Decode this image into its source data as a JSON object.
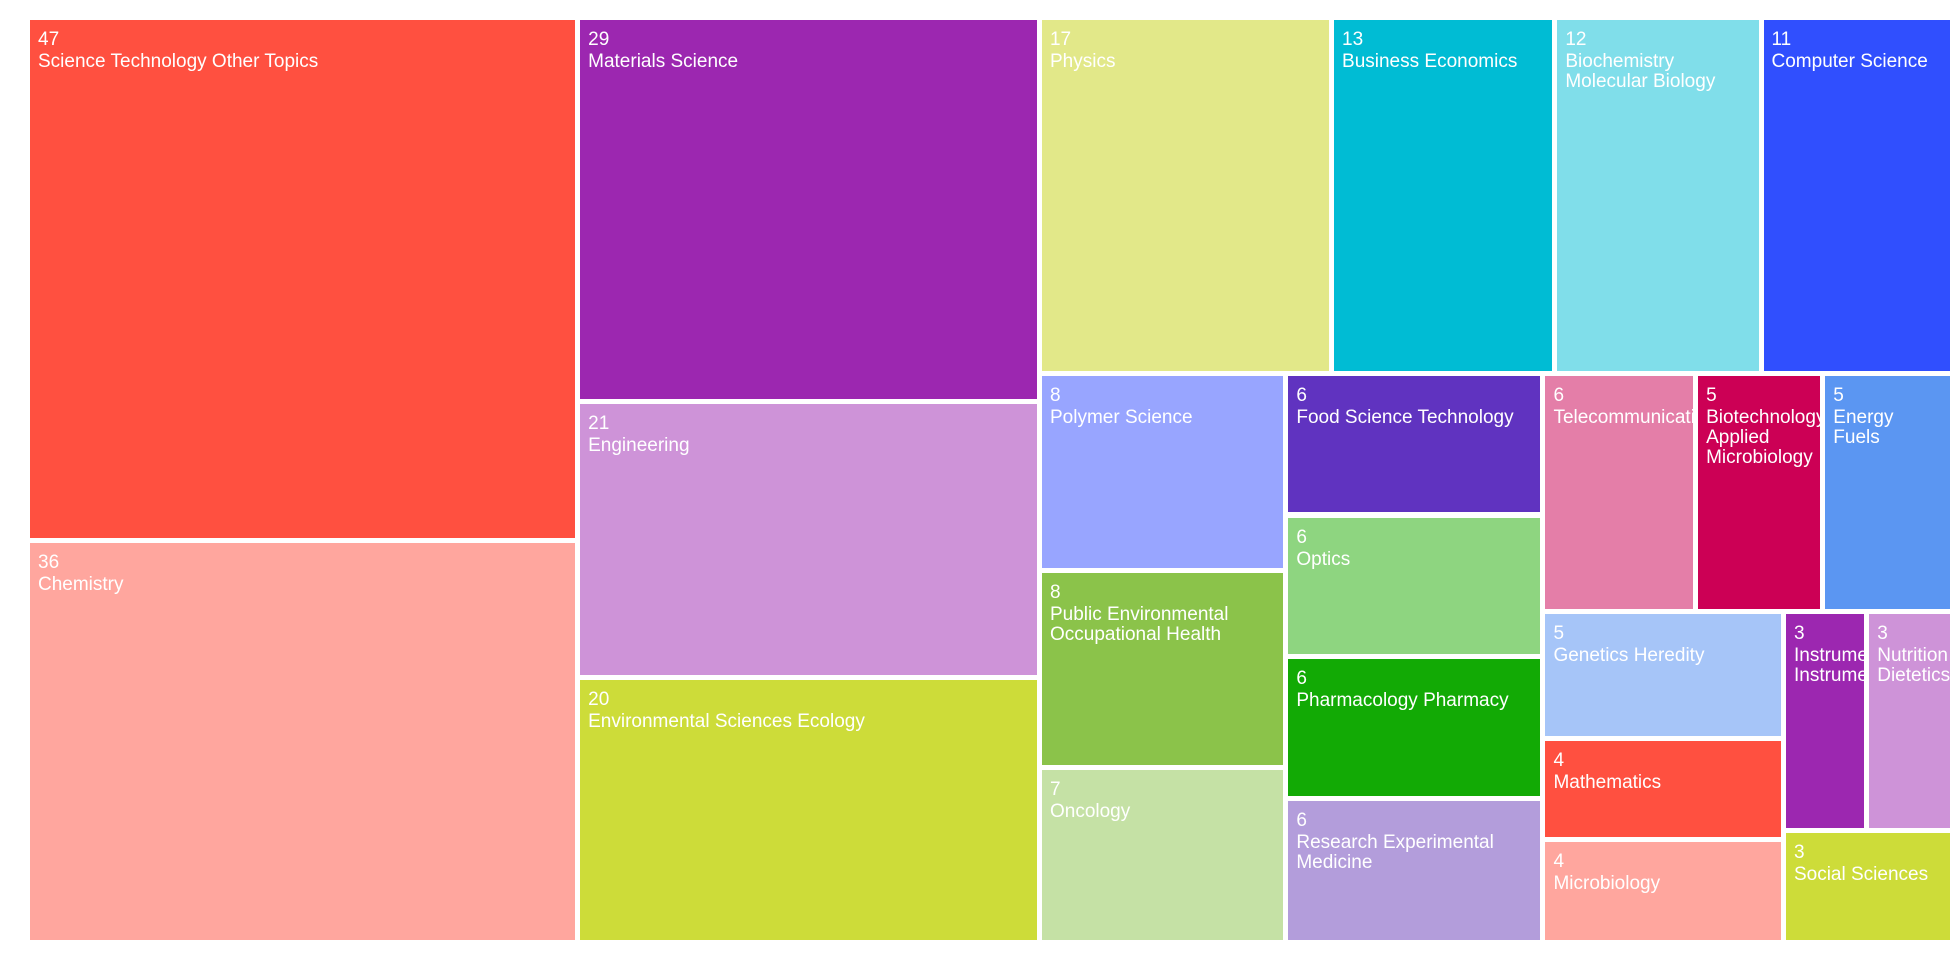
{
  "chart_data": {
    "type": "treemap",
    "categories": [
      "Science Technology Other Topics",
      "Chemistry",
      "Materials Science",
      "Engineering",
      "Environmental Sciences Ecology",
      "Physics",
      "Business Economics",
      "Biochemistry Molecular Biology",
      "Computer Science",
      "Polymer Science",
      "Public Environmental Occupational Health",
      "Oncology",
      "Food Science Technology",
      "Optics",
      "Pharmacology Pharmacy",
      "Research Experimental Medicine",
      "Telecommunications",
      "Biotechnology Applied Microbiology",
      "Energy Fuels",
      "Genetics Heredity",
      "Mathematics",
      "Microbiology",
      "Instruments Instrumentation",
      "Nutrition Dietetics",
      "Social Sciences"
    ],
    "values": [
      47,
      36,
      29,
      21,
      20,
      17,
      13,
      12,
      11,
      8,
      8,
      7,
      6,
      6,
      6,
      6,
      6,
      5,
      5,
      5,
      4,
      4,
      3,
      3,
      3
    ],
    "colors": [
      "#ff5040",
      "#ffa69e",
      "#9c27b0",
      "#ce93d8",
      "#cddc39",
      "#e2e889",
      "#00bcd4",
      "#80deea",
      "#304ffe",
      "#98a5ff",
      "#8bc34a",
      "#c5e1a5",
      "#6033c0",
      "#8ed580",
      "#12aa05",
      "#b39ddb",
      "#e47ea8",
      "#cc0055",
      "#5b96f2",
      "#a6c5f8",
      "#ff5040",
      "#ffa69e",
      "#9c27b0",
      "#ce93d8",
      "#cddc39"
    ]
  }
}
